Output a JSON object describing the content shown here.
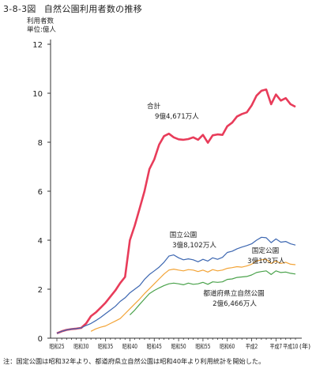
{
  "figure": {
    "number": "3-8-3図",
    "title": "自然公園利用者数の推移"
  },
  "y_unit": {
    "line1": "利用者数",
    "line2": "単位:億人"
  },
  "footnote": "注：国定公園は昭和32年より、都道府県立自然公園は昭和40年より利用統計を開始した。",
  "colors": {
    "total": "#e83c5a",
    "national": "#3d67b1",
    "quasi_national": "#f3a437",
    "prefectural": "#4aa24b",
    "axis": "#333333"
  },
  "chart_data": {
    "type": "line",
    "title": "自然公園利用者数の推移",
    "ylabel": "利用者数 単位:億人",
    "xlabel": "(年)",
    "ylim": [
      0,
      12
    ],
    "yticks": [
      0,
      2,
      4,
      6,
      8,
      10,
      12
    ],
    "xlim": [
      1950,
      1999
    ],
    "xticks": [
      {
        "x": 1950,
        "label": "昭和25"
      },
      {
        "x": 1955,
        "label": "昭和30"
      },
      {
        "x": 1960,
        "label": "昭和35"
      },
      {
        "x": 1965,
        "label": "昭和40"
      },
      {
        "x": 1970,
        "label": "昭和45"
      },
      {
        "x": 1975,
        "label": "昭和50"
      },
      {
        "x": 1980,
        "label": "昭和55"
      },
      {
        "x": 1985,
        "label": "昭和60"
      },
      {
        "x": 1990,
        "label": "平成2"
      },
      {
        "x": 1995,
        "label": "平成7"
      },
      {
        "x": 1998,
        "label": "平成10"
      }
    ],
    "series": [
      {
        "name": "合計",
        "color_key": "total",
        "annotation": [
          "合計",
          "9億4,671万人"
        ],
        "points": [
          [
            1950,
            0.2
          ],
          [
            1951,
            0.28
          ],
          [
            1952,
            0.34
          ],
          [
            1953,
            0.37
          ],
          [
            1954,
            0.39
          ],
          [
            1955,
            0.42
          ],
          [
            1956,
            0.6
          ],
          [
            1957,
            0.9
          ],
          [
            1958,
            1.05
          ],
          [
            1959,
            1.25
          ],
          [
            1960,
            1.45
          ],
          [
            1961,
            1.7
          ],
          [
            1962,
            1.95
          ],
          [
            1963,
            2.25
          ],
          [
            1964,
            2.5
          ],
          [
            1965,
            4.0
          ],
          [
            1966,
            4.6
          ],
          [
            1967,
            5.3
          ],
          [
            1968,
            6.0
          ],
          [
            1969,
            6.9
          ],
          [
            1970,
            7.3
          ],
          [
            1971,
            7.9
          ],
          [
            1972,
            8.25
          ],
          [
            1973,
            8.35
          ],
          [
            1974,
            8.2
          ],
          [
            1975,
            8.12
          ],
          [
            1976,
            8.1
          ],
          [
            1977,
            8.13
          ],
          [
            1978,
            8.2
          ],
          [
            1979,
            8.1
          ],
          [
            1980,
            8.3
          ],
          [
            1981,
            7.98
          ],
          [
            1982,
            8.28
          ],
          [
            1983,
            8.32
          ],
          [
            1984,
            8.3
          ],
          [
            1985,
            8.65
          ],
          [
            1986,
            8.8
          ],
          [
            1987,
            9.05
          ],
          [
            1988,
            9.15
          ],
          [
            1989,
            9.22
          ],
          [
            1990,
            9.5
          ],
          [
            1991,
            9.9
          ],
          [
            1992,
            10.1
          ],
          [
            1993,
            10.15
          ],
          [
            1994,
            9.55
          ],
          [
            1995,
            9.95
          ],
          [
            1996,
            9.7
          ],
          [
            1997,
            9.8
          ],
          [
            1998,
            9.55
          ],
          [
            1999,
            9.45
          ]
        ]
      },
      {
        "name": "国立公園",
        "color_key": "national",
        "annotation": [
          "国立公園",
          "3億8,102万人"
        ],
        "points": [
          [
            1950,
            0.2
          ],
          [
            1951,
            0.28
          ],
          [
            1952,
            0.34
          ],
          [
            1953,
            0.37
          ],
          [
            1954,
            0.39
          ],
          [
            1955,
            0.42
          ],
          [
            1956,
            0.52
          ],
          [
            1957,
            0.6
          ],
          [
            1958,
            0.72
          ],
          [
            1959,
            0.85
          ],
          [
            1960,
            1.0
          ],
          [
            1961,
            1.15
          ],
          [
            1962,
            1.3
          ],
          [
            1963,
            1.5
          ],
          [
            1964,
            1.65
          ],
          [
            1965,
            1.85
          ],
          [
            1966,
            2.0
          ],
          [
            1967,
            2.15
          ],
          [
            1968,
            2.4
          ],
          [
            1969,
            2.6
          ],
          [
            1970,
            2.75
          ],
          [
            1971,
            2.9
          ],
          [
            1972,
            3.1
          ],
          [
            1973,
            3.35
          ],
          [
            1974,
            3.4
          ],
          [
            1975,
            3.28
          ],
          [
            1976,
            3.2
          ],
          [
            1977,
            3.24
          ],
          [
            1978,
            3.2
          ],
          [
            1979,
            3.12
          ],
          [
            1980,
            3.22
          ],
          [
            1981,
            3.15
          ],
          [
            1982,
            3.28
          ],
          [
            1983,
            3.22
          ],
          [
            1984,
            3.3
          ],
          [
            1985,
            3.5
          ],
          [
            1986,
            3.55
          ],
          [
            1987,
            3.65
          ],
          [
            1988,
            3.72
          ],
          [
            1989,
            3.78
          ],
          [
            1990,
            3.85
          ],
          [
            1991,
            4.0
          ],
          [
            1992,
            4.12
          ],
          [
            1993,
            4.1
          ],
          [
            1994,
            3.9
          ],
          [
            1995,
            4.05
          ],
          [
            1996,
            3.92
          ],
          [
            1997,
            3.95
          ],
          [
            1998,
            3.85
          ],
          [
            1999,
            3.8
          ]
        ]
      },
      {
        "name": "国定公園",
        "color_key": "quasi_national",
        "annotation": [
          "国定公園",
          "3億103万人"
        ],
        "points": [
          [
            1957,
            0.28
          ],
          [
            1958,
            0.38
          ],
          [
            1959,
            0.45
          ],
          [
            1960,
            0.5
          ],
          [
            1961,
            0.6
          ],
          [
            1962,
            0.7
          ],
          [
            1963,
            0.8
          ],
          [
            1964,
            1.0
          ],
          [
            1965,
            1.2
          ],
          [
            1966,
            1.4
          ],
          [
            1967,
            1.6
          ],
          [
            1968,
            1.82
          ],
          [
            1969,
            2.02
          ],
          [
            1970,
            2.22
          ],
          [
            1971,
            2.42
          ],
          [
            1972,
            2.62
          ],
          [
            1973,
            2.78
          ],
          [
            1974,
            2.82
          ],
          [
            1975,
            2.78
          ],
          [
            1976,
            2.75
          ],
          [
            1977,
            2.8
          ],
          [
            1978,
            2.78
          ],
          [
            1979,
            2.72
          ],
          [
            1980,
            2.78
          ],
          [
            1981,
            2.7
          ],
          [
            1982,
            2.8
          ],
          [
            1983,
            2.75
          ],
          [
            1984,
            2.78
          ],
          [
            1985,
            2.85
          ],
          [
            1986,
            2.88
          ],
          [
            1987,
            2.92
          ],
          [
            1988,
            2.9
          ],
          [
            1989,
            2.95
          ],
          [
            1990,
            3.02
          ],
          [
            1991,
            3.15
          ],
          [
            1992,
            3.2
          ],
          [
            1993,
            3.22
          ],
          [
            1994,
            3.05
          ],
          [
            1995,
            3.15
          ],
          [
            1996,
            3.05
          ],
          [
            1997,
            3.1
          ],
          [
            1998,
            3.02
          ],
          [
            1999,
            3.0
          ]
        ]
      },
      {
        "name": "都道府県立自然公園",
        "color_key": "prefectural",
        "annotation": [
          "都道府県立自然公園",
          "2億6,466万人"
        ],
        "points": [
          [
            1965,
            0.95
          ],
          [
            1966,
            1.15
          ],
          [
            1967,
            1.38
          ],
          [
            1968,
            1.6
          ],
          [
            1969,
            1.82
          ],
          [
            1970,
            1.95
          ],
          [
            1971,
            2.05
          ],
          [
            1972,
            2.15
          ],
          [
            1973,
            2.22
          ],
          [
            1974,
            2.25
          ],
          [
            1975,
            2.22
          ],
          [
            1976,
            2.18
          ],
          [
            1977,
            2.25
          ],
          [
            1978,
            2.2
          ],
          [
            1979,
            2.22
          ],
          [
            1980,
            2.28
          ],
          [
            1981,
            2.2
          ],
          [
            1982,
            2.3
          ],
          [
            1983,
            2.28
          ],
          [
            1984,
            2.3
          ],
          [
            1985,
            2.4
          ],
          [
            1986,
            2.42
          ],
          [
            1987,
            2.48
          ],
          [
            1988,
            2.5
          ],
          [
            1989,
            2.52
          ],
          [
            1990,
            2.58
          ],
          [
            1991,
            2.68
          ],
          [
            1992,
            2.72
          ],
          [
            1993,
            2.75
          ],
          [
            1994,
            2.6
          ],
          [
            1995,
            2.75
          ],
          [
            1996,
            2.68
          ],
          [
            1997,
            2.7
          ],
          [
            1998,
            2.65
          ],
          [
            1999,
            2.62
          ]
        ]
      }
    ]
  }
}
